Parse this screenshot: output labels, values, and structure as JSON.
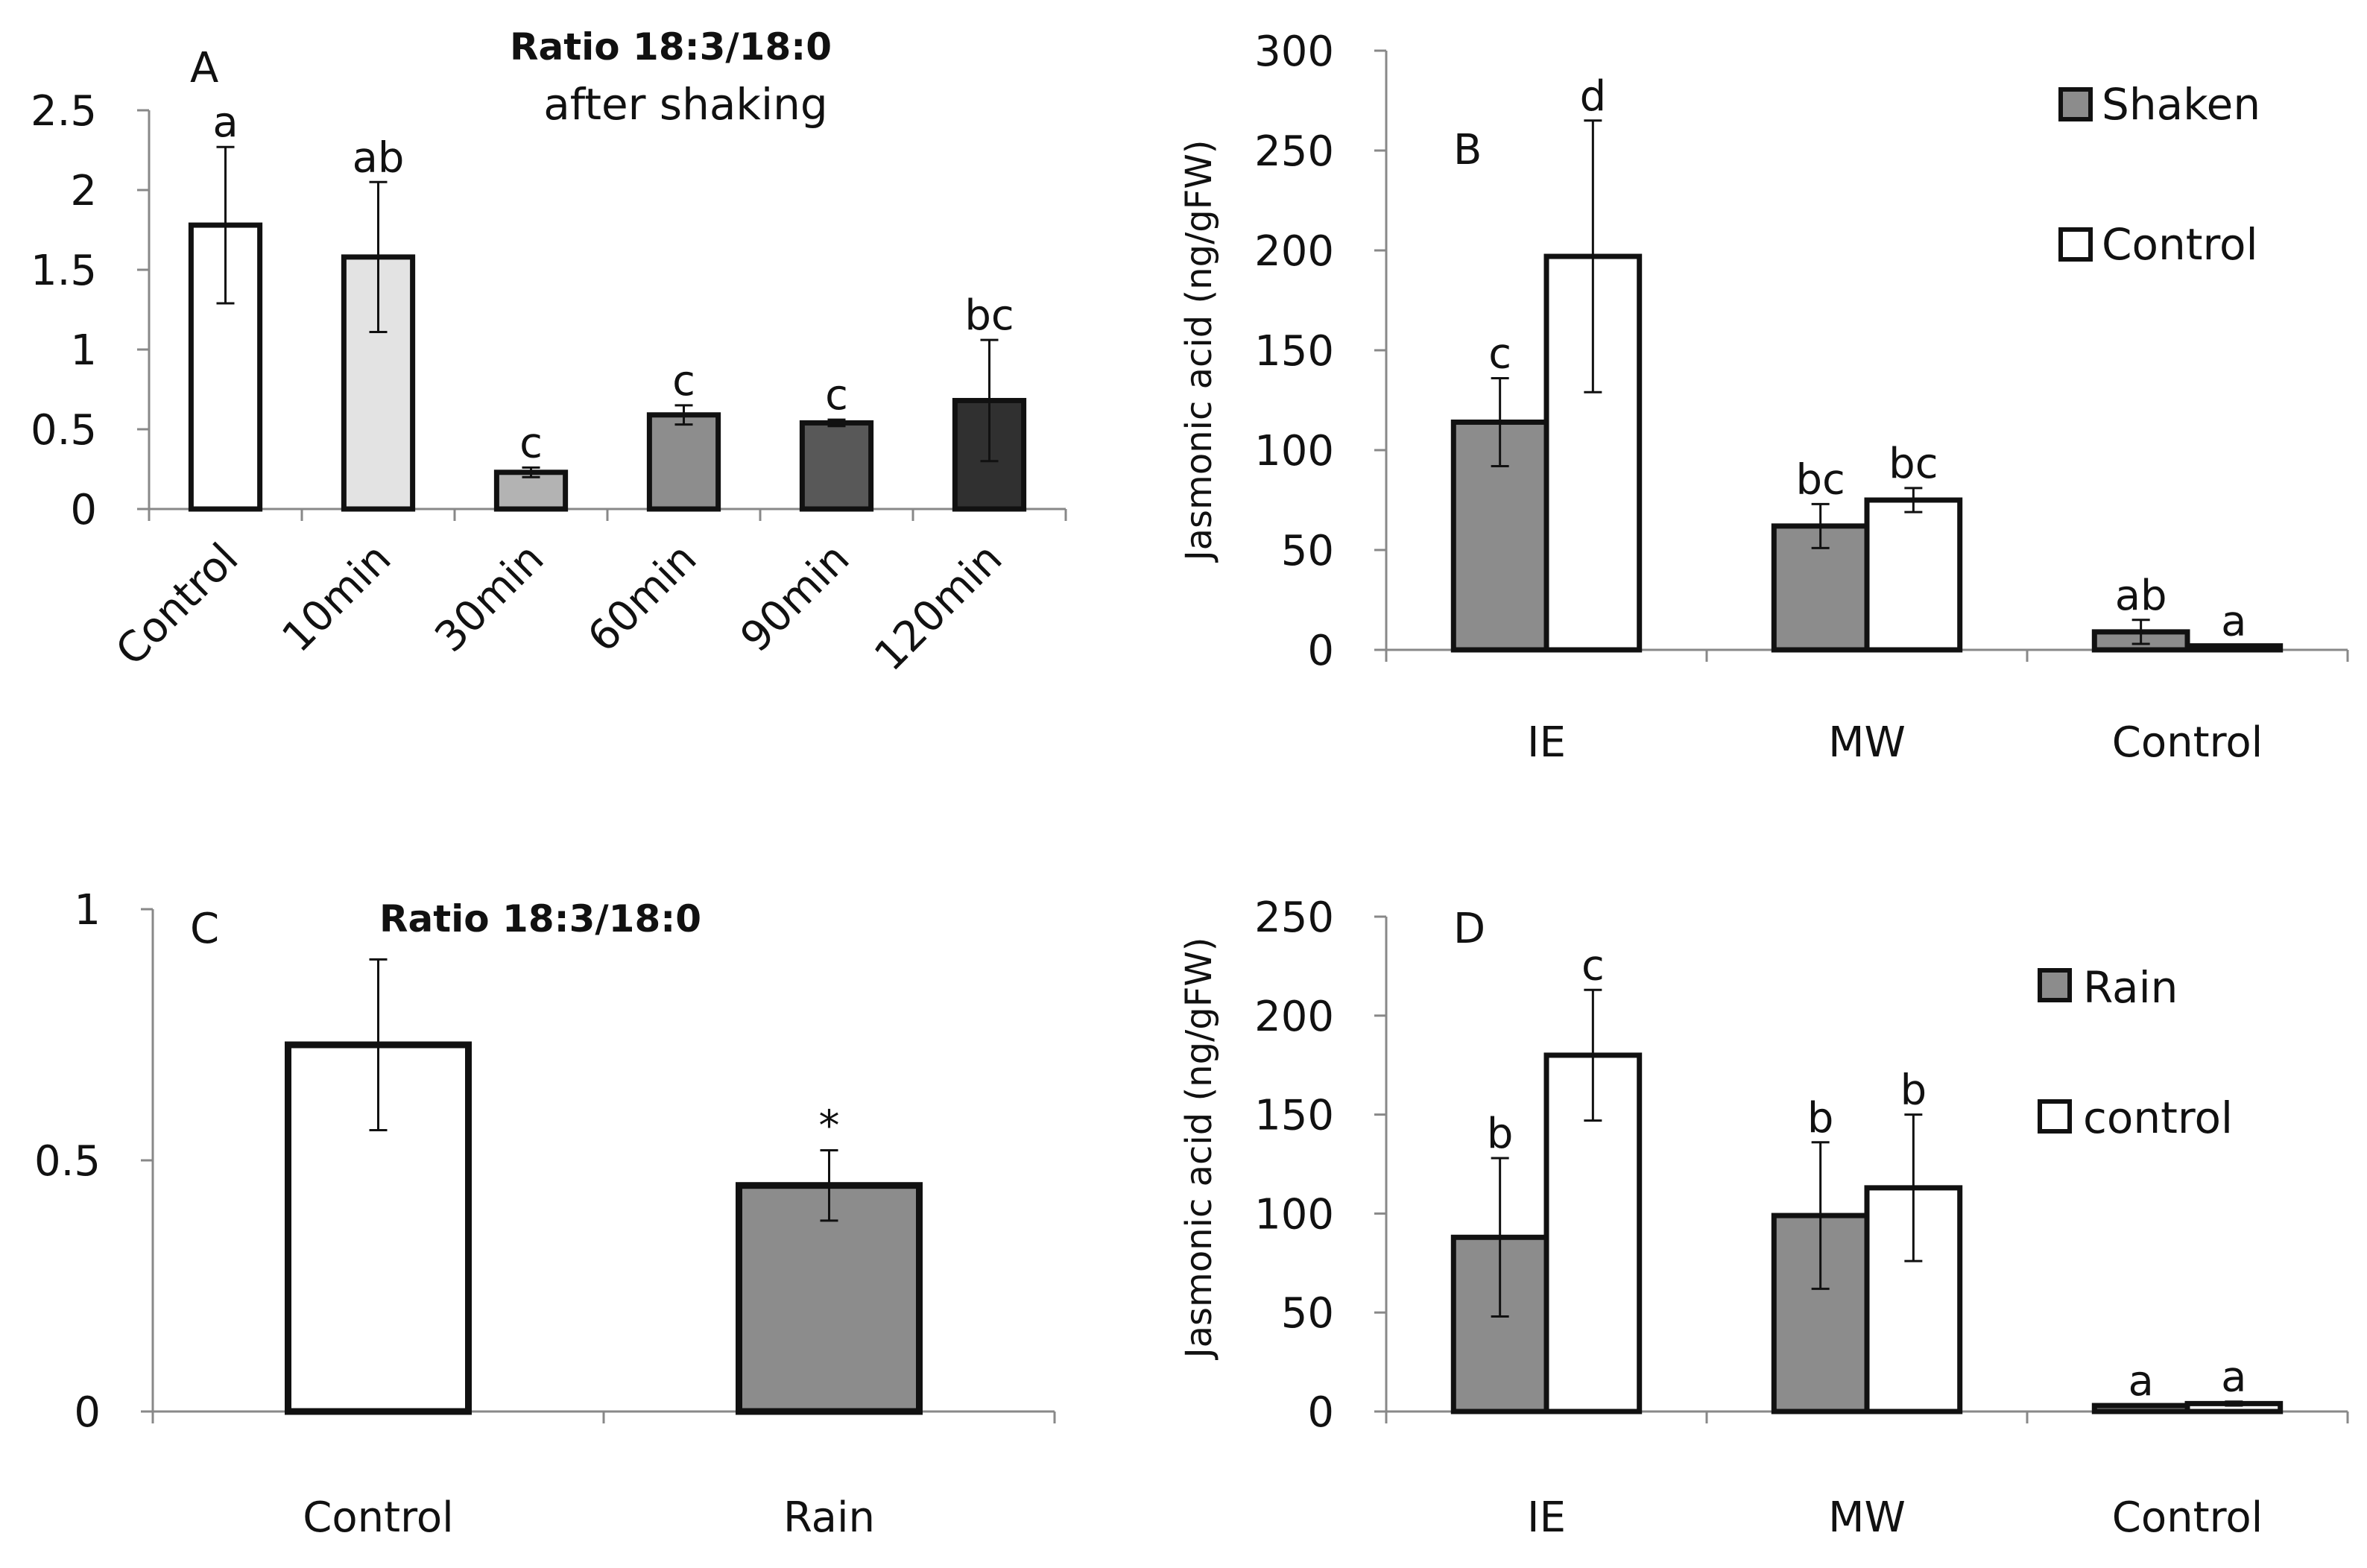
{
  "chart_data": [
    {
      "panel": "A",
      "type": "bar",
      "title": "Ratio 18:3/18:0",
      "subtitle": "after shaking",
      "xlabel": "",
      "ylabel": "",
      "ylim": [
        0,
        2.5
      ],
      "yticks": [
        "0",
        "0.5",
        "1",
        "1.5",
        "2",
        "2.5"
      ],
      "categories": [
        "Control",
        "10min",
        "30min",
        "60min",
        "90min",
        "120min"
      ],
      "values": [
        1.78,
        1.58,
        0.23,
        0.59,
        0.54,
        0.68
      ],
      "errors": [
        0.49,
        0.47,
        0.03,
        0.06,
        0.02,
        0.38
      ],
      "letters": [
        "a",
        "ab",
        "c",
        "c",
        "c",
        "bc"
      ],
      "colors": [
        "#ffffff",
        "#e3e3e3",
        "#b3b3b3",
        "#8d8d8d",
        "#585858",
        "#303030"
      ]
    },
    {
      "panel": "B",
      "type": "bar",
      "title": "",
      "xlabel": "",
      "ylabel": "Jasmonic acid (ng/gFW)",
      "ylim": [
        0,
        300
      ],
      "yticks": [
        "0",
        "50",
        "100",
        "150",
        "200",
        "250",
        "300"
      ],
      "categories": [
        "IE",
        "MW",
        "Control"
      ],
      "legend_position": "top-right",
      "series": [
        {
          "name": "Shaken",
          "color": "#8c8c8c",
          "values": [
            114,
            62,
            9
          ],
          "errors": [
            22,
            11,
            6
          ],
          "letters": [
            "c",
            "bc",
            "ab"
          ]
        },
        {
          "name": "Control",
          "color": "#ffffff",
          "values": [
            197,
            75,
            2
          ],
          "errors": [
            68,
            6,
            0
          ],
          "letters": [
            "d",
            "bc",
            "a"
          ]
        }
      ]
    },
    {
      "panel": "C",
      "type": "bar",
      "title": "Ratio 18:3/18:0",
      "xlabel": "",
      "ylabel": "",
      "ylim": [
        0,
        1
      ],
      "yticks": [
        "0",
        "0.5",
        "1"
      ],
      "categories": [
        "Control",
        "Rain"
      ],
      "values": [
        0.73,
        0.45
      ],
      "errors": [
        0.17,
        0.07
      ],
      "letters": [
        "",
        "*"
      ],
      "colors": [
        "#ffffff",
        "#8c8c8c"
      ]
    },
    {
      "panel": "D",
      "type": "bar",
      "title": "",
      "xlabel": "",
      "ylabel": "Jasmonic acid (ng/gFW)",
      "ylim": [
        0,
        250
      ],
      "yticks": [
        "0",
        "50",
        "100",
        "150",
        "200",
        "250"
      ],
      "categories": [
        "IE",
        "MW",
        "Control"
      ],
      "legend_position": "top-right",
      "series": [
        {
          "name": "Rain",
          "color": "#8c8c8c",
          "values": [
            88,
            99,
            3
          ],
          "errors": [
            40,
            37,
            0
          ],
          "letters": [
            "b",
            "b",
            "a"
          ]
        },
        {
          "name": "control",
          "color": "#ffffff",
          "values": [
            180,
            113,
            4
          ],
          "errors": [
            33,
            37,
            1
          ],
          "letters": [
            "c",
            "b",
            "a"
          ]
        }
      ]
    }
  ]
}
